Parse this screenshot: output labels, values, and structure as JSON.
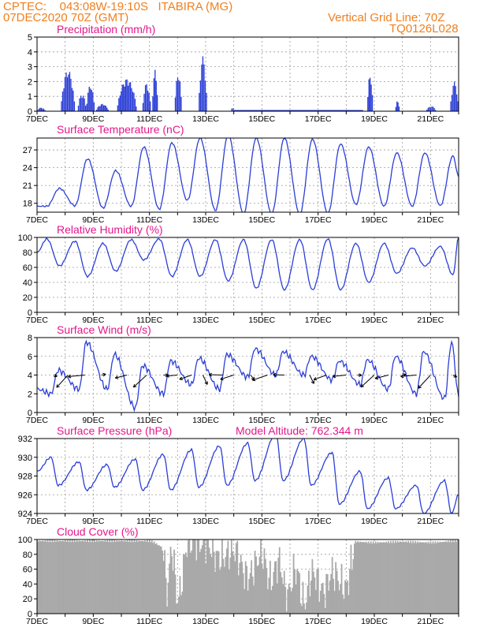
{
  "header": {
    "left_line1": "CPTEC:    043:08W-19:10S   ITABIRA (MG)",
    "left_line2": "07DEC2020 70Z (GMT)",
    "right_line1": "Vertical Grid Line: 70Z",
    "right_line2": "TQ0126L028"
  },
  "colors": {
    "line": "#2b3ed6",
    "bar": "#2b3ed6",
    "cloud": "#a9a9a9",
    "title": "#e6168c",
    "header": "#f07f1e"
  },
  "chart_data": [
    {
      "id": "precip",
      "type": "bar",
      "title": "Precipitation (mm/h)",
      "ylim": [
        0,
        5
      ],
      "yticks": [
        0,
        1,
        2,
        3,
        4,
        5
      ],
      "x_tick_labels": [
        "7DEC",
        "9DEC",
        "11DEC",
        "13DEC",
        "15DEC",
        "17DEC",
        "19DEC",
        "21DEC"
      ],
      "events": [
        {
          "start": 7.0,
          "end": 7.3,
          "peak": 0.25
        },
        {
          "start": 7.85,
          "end": 8.35,
          "peak": 2.8
        },
        {
          "start": 8.45,
          "end": 8.75,
          "peak": 1.2
        },
        {
          "start": 8.75,
          "end": 9.05,
          "peak": 1.8
        },
        {
          "start": 9.1,
          "end": 9.55,
          "peak": 0.5
        },
        {
          "start": 9.85,
          "end": 10.55,
          "peak": 2.2
        },
        {
          "start": 10.75,
          "end": 11.05,
          "peak": 1.9
        },
        {
          "start": 11.1,
          "end": 11.3,
          "peak": 2.8
        },
        {
          "start": 11.9,
          "end": 12.15,
          "peak": 2.6
        },
        {
          "start": 12.75,
          "end": 13.05,
          "peak": 3.7
        },
        {
          "start": 13.9,
          "end": 14.0,
          "peak": 0.3
        },
        {
          "start": 18.75,
          "end": 18.95,
          "peak": 2.5
        },
        {
          "start": 19.75,
          "end": 19.9,
          "peak": 0.7
        },
        {
          "start": 20.85,
          "end": 21.2,
          "peak": 0.35
        },
        {
          "start": 21.7,
          "end": 22.0,
          "peak": 2.0
        }
      ]
    },
    {
      "id": "temp",
      "type": "line",
      "title": "Surface Temperature (nC)",
      "ylim": [
        16.5,
        29
      ],
      "yticks": [
        18,
        21,
        24,
        27
      ],
      "daily_max": [
        20.5,
        25.5,
        23.5,
        27.5,
        28.2,
        29.0,
        29.5,
        29.0,
        29.0,
        28.8,
        28.0,
        27.5,
        26.5,
        26.5,
        26.0
      ],
      "daily_min": [
        17.5,
        17.6,
        17.2,
        17.5,
        17.0,
        18.5,
        16.8,
        16.3,
        16.2,
        16.2,
        16.3,
        17.8,
        17.5,
        17.5,
        17.6
      ],
      "end_value": 22.5
    },
    {
      "id": "rh",
      "type": "line",
      "title": "Relative Humidity (%)",
      "ylim": [
        0,
        100
      ],
      "yticks": [
        0,
        20,
        40,
        60,
        80,
        100
      ],
      "daily_min": [
        62,
        48,
        55,
        70,
        48,
        48,
        42,
        32,
        30,
        30,
        30,
        40,
        52,
        62,
        50
      ],
      "daily_max": [
        98,
        95,
        92,
        97,
        98,
        97,
        97,
        97,
        97,
        97,
        98,
        92,
        92,
        86,
        88
      ]
    },
    {
      "id": "wind",
      "type": "line",
      "title": "Surface Wind (m/s)",
      "ylim": [
        0,
        8
      ],
      "yticks": [
        0,
        2,
        4,
        6,
        8
      ],
      "daily_max": [
        4.5,
        7.5,
        6.2,
        5.0,
        5.5,
        5.8,
        6.2,
        6.8,
        6.5,
        6.0,
        5.5,
        5.6,
        6.0,
        6.5,
        7.5
      ],
      "daily_min": [
        2.0,
        2.5,
        2.5,
        0.5,
        2.0,
        3.0,
        2.5,
        3.8,
        4.0,
        4.0,
        3.5,
        3.0,
        2.5,
        2.0,
        1.5
      ],
      "arrow_days": [
        7.6,
        8.1,
        8.7,
        9.3,
        10.2,
        10.9,
        11.5,
        12.0,
        12.5,
        12.9,
        13.6,
        14.0,
        14.6,
        15.2,
        15.8,
        16.7,
        17.3,
        18.0,
        18.4,
        19.0,
        19.5,
        20.0,
        20.5,
        21.0,
        21.8
      ]
    },
    {
      "id": "pressure",
      "type": "line",
      "title": "Surface Pressure (hPa)",
      "model_altitude": "Model Altitude: 762.344 m",
      "ylim": [
        924,
        932
      ],
      "yticks": [
        924,
        926,
        928,
        930,
        932
      ],
      "start_value": 928.5,
      "daily_max": [
        930.0,
        929.5,
        929.2,
        929.8,
        930.3,
        930.8,
        931.2,
        931.5,
        932.5,
        932.0,
        930.5,
        928.5,
        927.8,
        927.0,
        927.5
      ],
      "daily_min": [
        927.0,
        926.5,
        926.8,
        926.5,
        926.5,
        926.8,
        927.0,
        927.5,
        927.5,
        927.0,
        925.0,
        924.5,
        924.5,
        924.0,
        924.0
      ]
    },
    {
      "id": "cloud",
      "type": "area",
      "title": "Cloud Cover (%)",
      "ylim": [
        0,
        100
      ],
      "yticks": [
        0,
        20,
        40,
        60,
        80,
        100
      ],
      "knots": [
        [
          7.0,
          98
        ],
        [
          8.0,
          98
        ],
        [
          9.0,
          98
        ],
        [
          10.0,
          98
        ],
        [
          11.0,
          98
        ],
        [
          11.5,
          90
        ],
        [
          11.6,
          30
        ],
        [
          11.8,
          85
        ],
        [
          12.0,
          20
        ],
        [
          12.4,
          98
        ],
        [
          13.0,
          95
        ],
        [
          13.5,
          75
        ],
        [
          14.0,
          85
        ],
        [
          14.5,
          50
        ],
        [
          15.0,
          80
        ],
        [
          15.3,
          45
        ],
        [
          15.6,
          70
        ],
        [
          15.9,
          25
        ],
        [
          16.2,
          60
        ],
        [
          16.5,
          15
        ],
        [
          16.8,
          55
        ],
        [
          17.2,
          30
        ],
        [
          17.5,
          55
        ],
        [
          18.0,
          35
        ],
        [
          18.2,
          70
        ],
        [
          18.3,
          97
        ],
        [
          19.0,
          96
        ],
        [
          20.0,
          97
        ],
        [
          21.0,
          96
        ],
        [
          22.0,
          98
        ]
      ]
    }
  ]
}
